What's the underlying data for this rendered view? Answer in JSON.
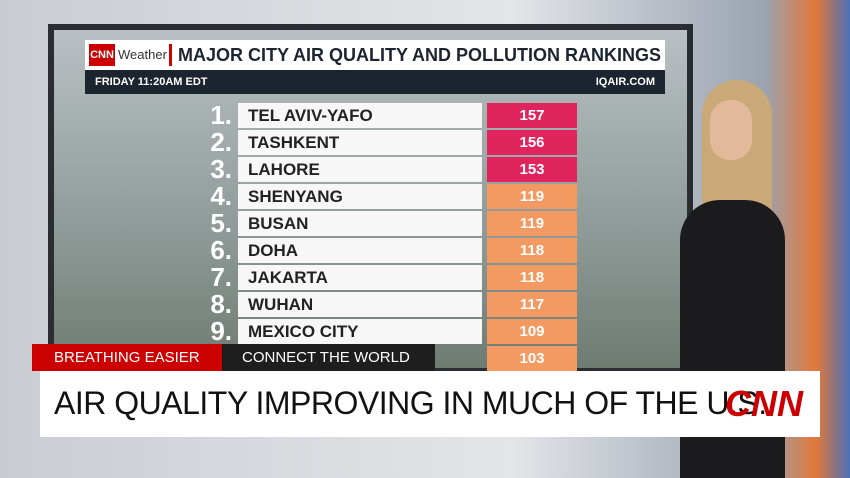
{
  "header": {
    "brand": "CNN",
    "section": "Weather",
    "title": "MAJOR CITY AIR QUALITY AND POLLUTION RANKINGS",
    "time": "FRIDAY 11:20AM EDT",
    "source": "IQAIR.COM"
  },
  "rankings": [
    {
      "rank": "1.",
      "city": "TEL AVIV-YAFO",
      "value": 157,
      "color": "#e0245e"
    },
    {
      "rank": "2.",
      "city": "TASHKENT",
      "value": 156,
      "color": "#e0245e"
    },
    {
      "rank": "3.",
      "city": "LAHORE",
      "value": 153,
      "color": "#e0245e"
    },
    {
      "rank": "4.",
      "city": "SHENYANG",
      "value": 119,
      "color": "#f39a62"
    },
    {
      "rank": "5.",
      "city": "BUSAN",
      "value": 119,
      "color": "#f39a62"
    },
    {
      "rank": "6.",
      "city": "DOHA",
      "value": 118,
      "color": "#f39a62"
    },
    {
      "rank": "7.",
      "city": "JAKARTA",
      "value": 118,
      "color": "#f39a62"
    },
    {
      "rank": "8.",
      "city": "WUHAN",
      "value": 117,
      "color": "#f39a62"
    },
    {
      "rank": "9.",
      "city": "MEXICO CITY",
      "value": 109,
      "color": "#f39a62"
    },
    {
      "value": 103,
      "color": "#f39a62"
    }
  ],
  "lower_third": {
    "tag": "BREATHING EASIER",
    "show": "CONNECT THE WORLD",
    "headline": "AIR QUALITY IMPROVING IN MUCH OF THE U.S.",
    "logo": "CNN"
  }
}
